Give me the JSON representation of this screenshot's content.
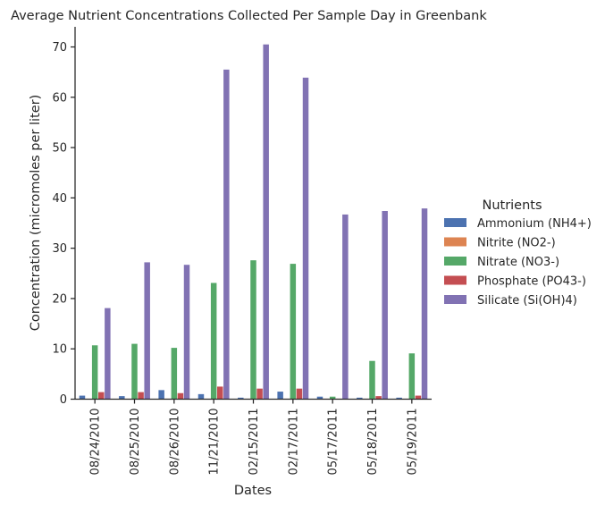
{
  "chart_data": {
    "type": "bar",
    "title": "Average Nutrient Concentrations Collected Per Sample Day in Greenbank",
    "xlabel": "Dates",
    "ylabel": "Concentration (micromoles per liter)",
    "ylim": [
      0,
      74
    ],
    "yticks": [
      0,
      10,
      20,
      30,
      40,
      50,
      60,
      70
    ],
    "categories": [
      "08/24/2010",
      "08/25/2010",
      "08/26/2010",
      "11/21/2010",
      "02/15/2011",
      "02/17/2011",
      "05/17/2011",
      "05/18/2011",
      "05/19/2011"
    ],
    "legend_title": "Nutrients",
    "legend_position": "right",
    "grid": false,
    "series": [
      {
        "name": "Ammonium (NH4+)",
        "color": "#4c72b0",
        "values": [
          0.7,
          0.6,
          1.8,
          1.0,
          0.3,
          1.5,
          0.5,
          0.3,
          0.3
        ]
      },
      {
        "name": "Nitrite (NO2-)",
        "color": "#dd8452",
        "values": [
          0.1,
          0.1,
          0.1,
          0.1,
          0.1,
          0.1,
          0.1,
          0.1,
          0.1
        ]
      },
      {
        "name": "Nitrate (NO3-)",
        "color": "#55a868",
        "values": [
          10.7,
          11.0,
          10.2,
          23.1,
          27.6,
          26.9,
          0.5,
          7.6,
          9.1
        ]
      },
      {
        "name": "Phosphate (PO43-)",
        "color": "#c44e52",
        "values": [
          1.4,
          1.4,
          1.2,
          2.5,
          2.1,
          2.1,
          0.1,
          0.6,
          0.7
        ]
      },
      {
        "name": "Silicate (Si(OH)4)",
        "color": "#8172b3",
        "values": [
          18.1,
          27.2,
          26.7,
          65.5,
          70.5,
          63.9,
          36.7,
          37.4,
          37.9
        ]
      }
    ]
  }
}
